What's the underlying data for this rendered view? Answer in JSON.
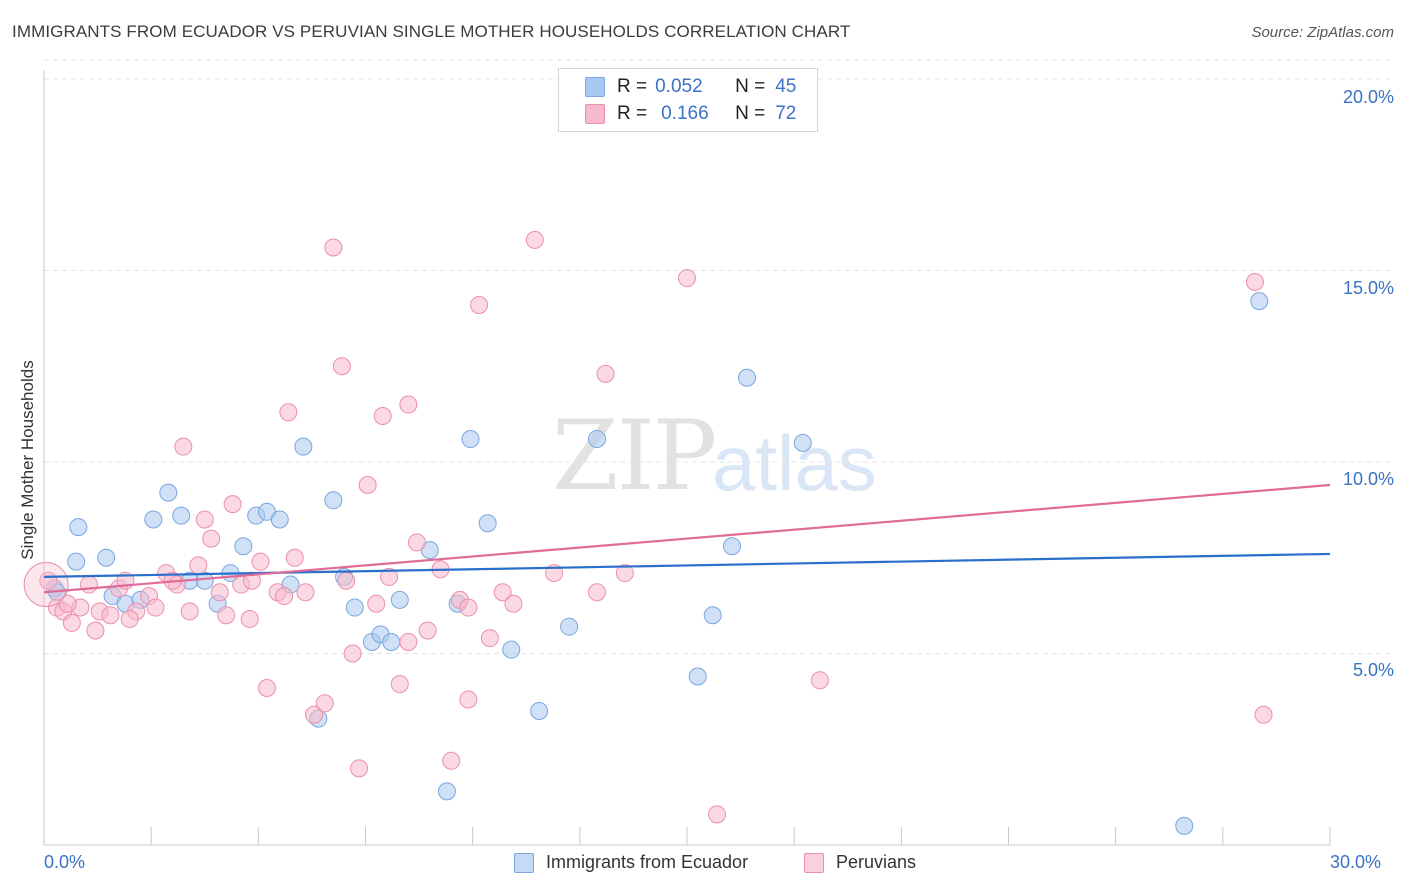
{
  "title": "IMMIGRANTS FROM ECUADOR VS PERUVIAN SINGLE MOTHER HOUSEHOLDS CORRELATION CHART",
  "source": "Source: ZipAtlas.com",
  "watermark": {
    "zip": "ZIP",
    "atlas": "atlas"
  },
  "legend": {
    "r_label": "R =",
    "n_label": "N =",
    "series1": {
      "r": "0.052",
      "n": "45",
      "color": "#a9c8f0"
    },
    "series2": {
      "r": "0.166",
      "n": "72",
      "color": "#f7b9cc"
    }
  },
  "bottom_legend": {
    "series1": "Immigrants from Ecuador",
    "series2": "Peruvians"
  },
  "chart_data": {
    "type": "scatter",
    "title": "IMMIGRANTS FROM ECUADOR VS PERUVIAN SINGLE MOTHER HOUSEHOLDS CORRELATION CHART",
    "xlabel": "",
    "ylabel": "Single Mother Households",
    "xlim": [
      0,
      30
    ],
    "ylim": [
      0,
      20.5
    ],
    "x_tick_labels": [
      "0.0%",
      "30.0%"
    ],
    "y_ticks": [
      5,
      10,
      15,
      20
    ],
    "y_tick_labels": [
      "5.0%",
      "10.0%",
      "15.0%",
      "20.0%"
    ],
    "grid": true,
    "series": [
      {
        "name": "Immigrants from Ecuador",
        "color": "#a9c8f0",
        "stroke": "#7aa6df",
        "line_color": "#2a6fcb",
        "trend": [
          [
            0,
            7.0
          ],
          [
            30,
            7.6
          ]
        ],
        "points": [
          [
            0.25,
            6.7
          ],
          [
            0.8,
            8.3
          ],
          [
            0.75,
            7.4
          ],
          [
            1.45,
            7.5
          ],
          [
            1.6,
            6.5
          ],
          [
            1.9,
            6.3
          ],
          [
            2.25,
            6.4
          ],
          [
            2.55,
            8.5
          ],
          [
            2.9,
            9.2
          ],
          [
            3.2,
            8.6
          ],
          [
            3.4,
            6.9
          ],
          [
            3.75,
            6.9
          ],
          [
            4.05,
            6.3
          ],
          [
            4.35,
            7.1
          ],
          [
            4.65,
            7.8
          ],
          [
            4.95,
            8.6
          ],
          [
            5.2,
            8.7
          ],
          [
            5.5,
            8.5
          ],
          [
            5.75,
            6.8
          ],
          [
            6.05,
            10.4
          ],
          [
            6.4,
            3.3
          ],
          [
            6.75,
            9.0
          ],
          [
            7.0,
            7.0
          ],
          [
            7.25,
            6.2
          ],
          [
            7.65,
            5.3
          ],
          [
            7.85,
            5.5
          ],
          [
            8.1,
            5.3
          ],
          [
            8.3,
            6.4
          ],
          [
            9.0,
            7.7
          ],
          [
            9.4,
            1.4
          ],
          [
            9.65,
            6.3
          ],
          [
            9.95,
            10.6
          ],
          [
            10.35,
            8.4
          ],
          [
            10.9,
            5.1
          ],
          [
            11.55,
            3.5
          ],
          [
            12.25,
            5.7
          ],
          [
            12.9,
            10.6
          ],
          [
            15.25,
            4.4
          ],
          [
            15.6,
            6.0
          ],
          [
            16.05,
            7.8
          ],
          [
            16.4,
            12.2
          ],
          [
            17.7,
            10.5
          ],
          [
            26.6,
            0.5
          ],
          [
            28.35,
            14.2
          ],
          [
            0.3,
            6.6
          ]
        ]
      },
      {
        "name": "Peruvians",
        "color": "#f7b9cc",
        "stroke": "#ec8fac",
        "line_color": "#e06b98",
        "trend": [
          [
            0,
            6.6
          ],
          [
            30,
            9.4
          ]
        ],
        "points": [
          [
            0.1,
            6.9
          ],
          [
            0.3,
            6.2
          ],
          [
            0.45,
            6.1
          ],
          [
            0.65,
            5.8
          ],
          [
            0.85,
            6.2
          ],
          [
            1.05,
            6.8
          ],
          [
            1.3,
            6.1
          ],
          [
            1.55,
            6.0
          ],
          [
            1.75,
            6.7
          ],
          [
            1.9,
            6.9
          ],
          [
            2.15,
            6.1
          ],
          [
            2.45,
            6.5
          ],
          [
            2.6,
            6.2
          ],
          [
            2.85,
            7.1
          ],
          [
            3.1,
            6.8
          ],
          [
            3.25,
            10.4
          ],
          [
            3.4,
            6.1
          ],
          [
            3.6,
            7.3
          ],
          [
            3.75,
            8.5
          ],
          [
            3.9,
            8.0
          ],
          [
            4.1,
            6.6
          ],
          [
            4.25,
            6.0
          ],
          [
            4.4,
            8.9
          ],
          [
            4.6,
            6.8
          ],
          [
            4.85,
            6.9
          ],
          [
            5.05,
            7.4
          ],
          [
            5.2,
            4.1
          ],
          [
            5.45,
            6.6
          ],
          [
            5.7,
            11.3
          ],
          [
            5.85,
            7.5
          ],
          [
            6.1,
            6.6
          ],
          [
            6.3,
            3.4
          ],
          [
            6.55,
            3.7
          ],
          [
            6.75,
            15.6
          ],
          [
            6.95,
            12.5
          ],
          [
            7.2,
            5.0
          ],
          [
            7.35,
            2.0
          ],
          [
            7.55,
            9.4
          ],
          [
            7.75,
            6.3
          ],
          [
            7.9,
            11.2
          ],
          [
            8.05,
            7.0
          ],
          [
            8.3,
            4.2
          ],
          [
            8.5,
            11.5
          ],
          [
            8.7,
            7.9
          ],
          [
            8.95,
            5.6
          ],
          [
            9.25,
            7.2
          ],
          [
            9.5,
            2.2
          ],
          [
            9.7,
            6.4
          ],
          [
            9.9,
            3.8
          ],
          [
            10.15,
            14.1
          ],
          [
            10.4,
            5.4
          ],
          [
            10.7,
            6.6
          ],
          [
            10.95,
            6.3
          ],
          [
            11.45,
            15.8
          ],
          [
            11.9,
            7.1
          ],
          [
            12.9,
            6.6
          ],
          [
            13.1,
            12.3
          ],
          [
            13.55,
            7.1
          ],
          [
            15.0,
            14.8
          ],
          [
            15.7,
            0.8
          ],
          [
            18.1,
            4.3
          ],
          [
            28.25,
            14.7
          ],
          [
            28.45,
            3.4
          ],
          [
            1.2,
            5.6
          ],
          [
            2.0,
            5.9
          ],
          [
            3.0,
            6.9
          ],
          [
            5.6,
            6.5
          ],
          [
            7.05,
            6.9
          ],
          [
            8.5,
            5.3
          ],
          [
            9.9,
            6.2
          ],
          [
            0.55,
            6.3
          ],
          [
            4.8,
            5.9
          ]
        ]
      }
    ]
  }
}
